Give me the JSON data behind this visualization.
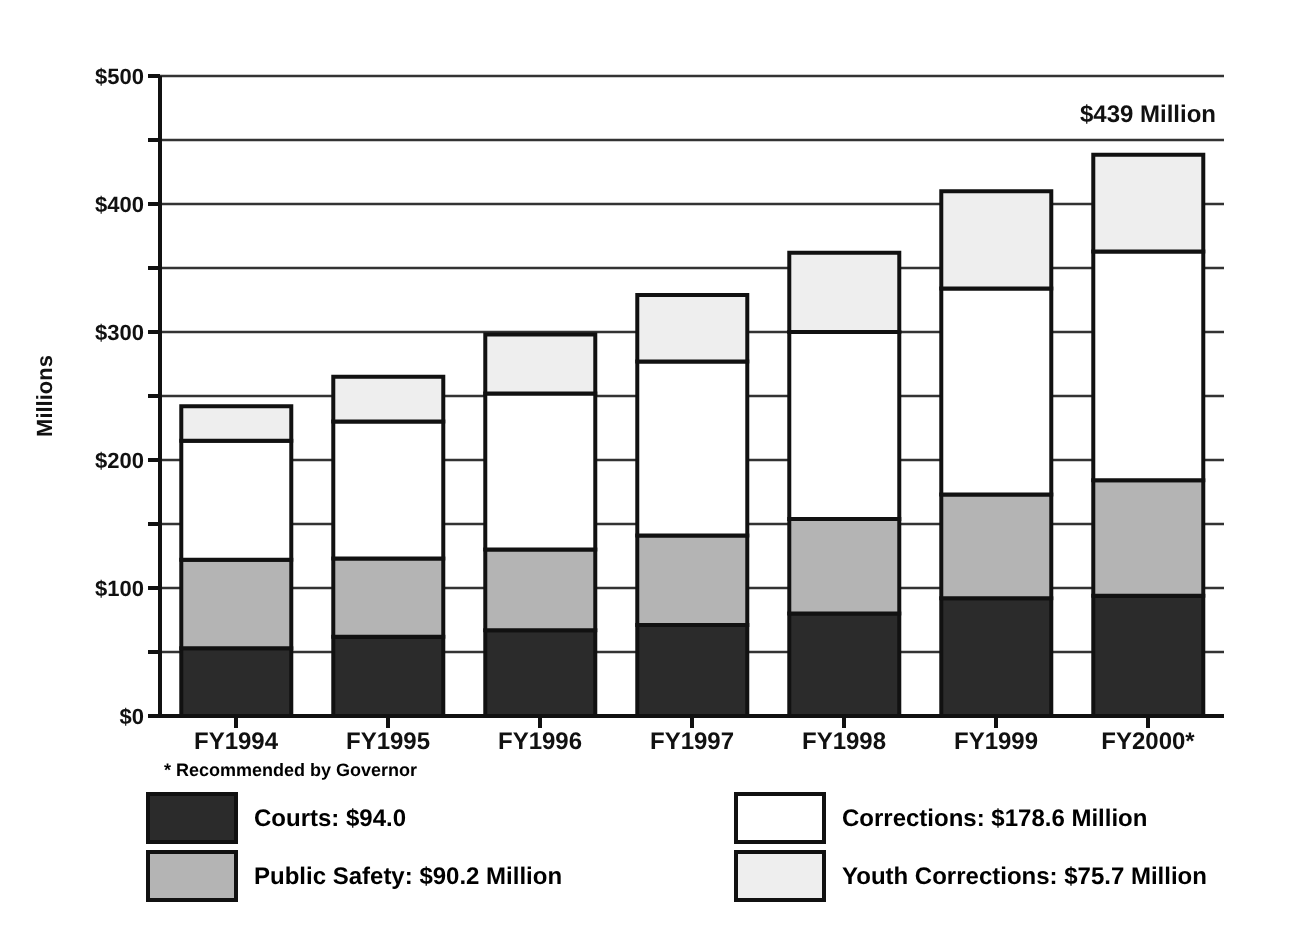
{
  "chart_data": {
    "type": "bar",
    "stacked": true,
    "ylabel": "Millions",
    "categories": [
      "FY1994",
      "FY1995",
      "FY1996",
      "FY1997",
      "FY1998",
      "FY1999",
      "FY2000*"
    ],
    "series": [
      {
        "name": "Courts:  $94.0",
        "color": "#2b2b2b",
        "values": [
          53,
          62,
          67,
          71,
          80,
          92,
          94
        ]
      },
      {
        "name": "Public Safety:  $90.2 Million",
        "color": "#b4b4b4",
        "values": [
          69,
          61,
          63,
          70,
          74,
          81,
          90.2
        ]
      },
      {
        "name": "Corrections:  $178.6 Million",
        "color": "#ffffff",
        "values": [
          93,
          107,
          122,
          136,
          146,
          161,
          178.6
        ]
      },
      {
        "name": "Youth Corrections:  $75.7 Million",
        "color": "#eeeeee",
        "values": [
          27,
          35,
          46,
          52,
          62,
          76,
          75.7
        ]
      }
    ],
    "ylim": [
      0,
      500
    ],
    "yticks": [
      {
        "value": 0,
        "label": "$0"
      },
      {
        "value": 50,
        "label": null
      },
      {
        "value": 100,
        "label": "$100"
      },
      {
        "value": 150,
        "label": null
      },
      {
        "value": 200,
        "label": "$200"
      },
      {
        "value": 250,
        "label": null
      },
      {
        "value": 300,
        "label": "$300"
      },
      {
        "value": 350,
        "label": null
      },
      {
        "value": 400,
        "label": "$400"
      },
      {
        "value": 450,
        "label": null
      },
      {
        "value": 500,
        "label": "$500"
      }
    ],
    "grid": "y",
    "legend": "bottom",
    "annotations": [
      {
        "text": "$439 Million",
        "x": "FY2000*",
        "y": 439
      },
      "* Recommended by Governor"
    ]
  }
}
